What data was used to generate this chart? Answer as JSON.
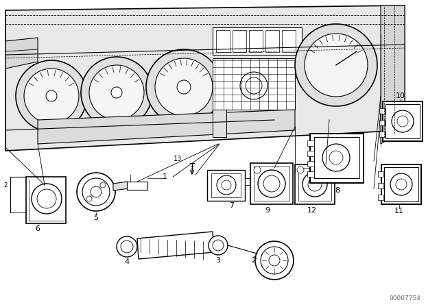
{
  "bg_color": "#ffffff",
  "fig_width": 6.4,
  "fig_height": 4.48,
  "dpi": 100,
  "watermark": "00007754",
  "line_color": "#000000",
  "dash_color": "#444444"
}
